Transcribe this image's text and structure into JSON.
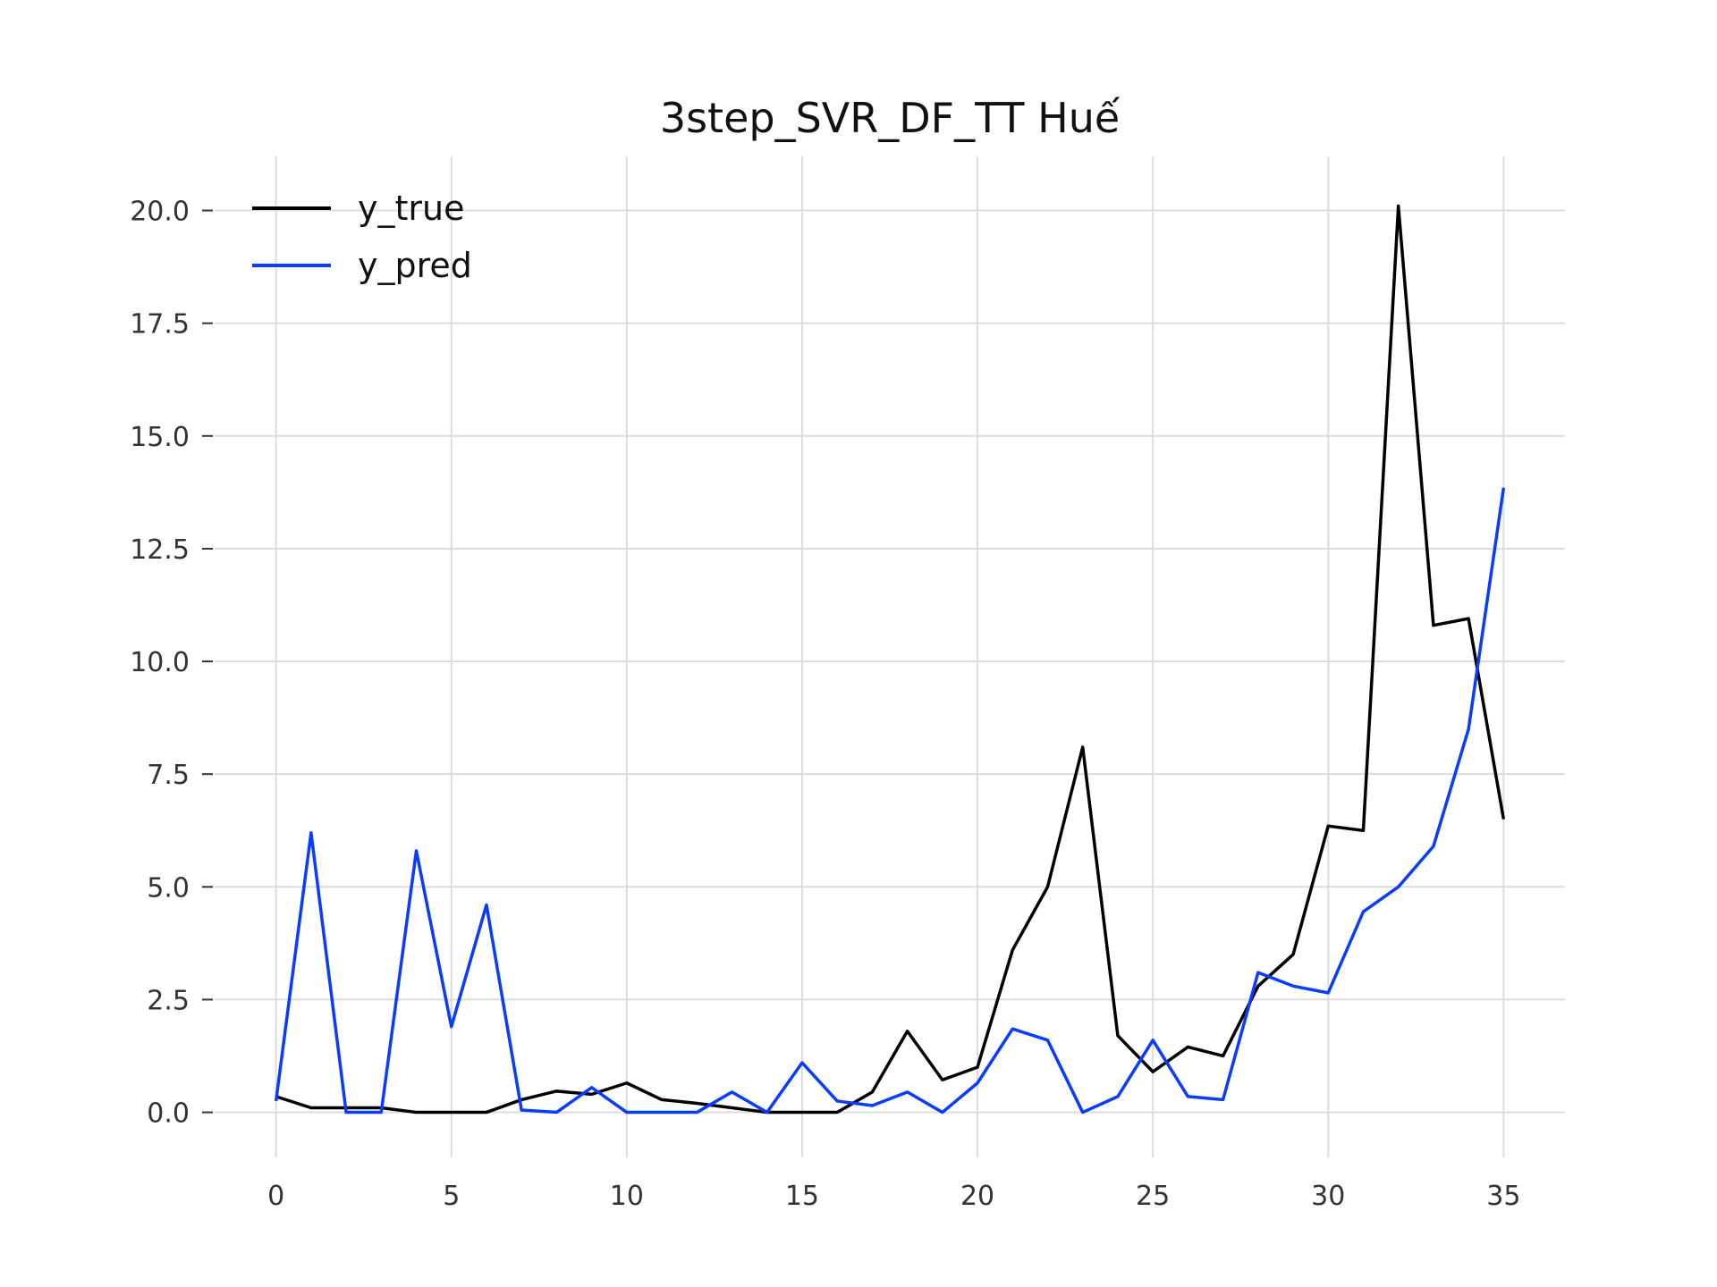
{
  "chart_data": {
    "type": "line",
    "title": "3step_SVR_DF_TT Huế",
    "xlabel": "",
    "ylabel": "",
    "xlim": [
      -1.75,
      36.75
    ],
    "ylim": [
      -1.0,
      21.2
    ],
    "xticks": [
      0,
      5,
      10,
      15,
      20,
      25,
      30,
      35
    ],
    "xtick_labels": [
      "0",
      "5",
      "10",
      "15",
      "20",
      "25",
      "30",
      "35"
    ],
    "yticks": [
      0.0,
      2.5,
      5.0,
      7.5,
      10.0,
      12.5,
      15.0,
      17.5,
      20.0
    ],
    "ytick_labels": [
      "0.0",
      "2.5",
      "5.0",
      "7.5",
      "10.0",
      "12.5",
      "15.0",
      "17.5",
      "20.0"
    ],
    "grid": true,
    "legend_position": "top-left",
    "x": [
      0,
      1,
      2,
      3,
      4,
      5,
      6,
      7,
      8,
      9,
      10,
      11,
      12,
      13,
      14,
      15,
      16,
      17,
      18,
      19,
      20,
      21,
      22,
      23,
      24,
      25,
      26,
      27,
      28,
      29,
      30,
      31,
      32,
      33,
      34,
      35
    ],
    "series": [
      {
        "name": "y_true",
        "color": "#000000",
        "values": [
          0.35,
          0.1,
          0.1,
          0.1,
          0.0,
          0.0,
          0.0,
          0.28,
          0.47,
          0.4,
          0.65,
          0.28,
          0.2,
          0.1,
          0.0,
          0.0,
          0.0,
          0.45,
          1.8,
          0.72,
          1.0,
          3.6,
          5.0,
          8.1,
          1.7,
          0.9,
          1.45,
          1.25,
          2.8,
          3.5,
          6.35,
          6.25,
          20.1,
          10.8,
          10.95,
          6.5
        ]
      },
      {
        "name": "y_pred",
        "color": "#0a3cff",
        "values": [
          0.25,
          6.2,
          0.0,
          0.0,
          5.8,
          1.9,
          4.6,
          0.05,
          0.0,
          0.55,
          0.0,
          0.0,
          0.0,
          0.45,
          0.0,
          1.1,
          0.25,
          0.15,
          0.45,
          0.0,
          0.65,
          1.85,
          1.6,
          0.0,
          0.35,
          1.6,
          0.35,
          0.28,
          3.1,
          2.8,
          2.65,
          4.45,
          5.0,
          5.9,
          8.5,
          13.85
        ]
      }
    ]
  }
}
